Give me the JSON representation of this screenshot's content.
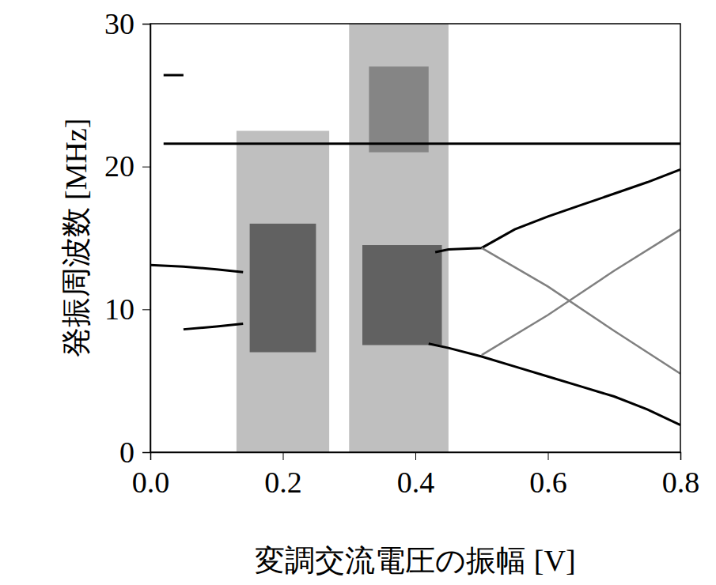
{
  "chart_data": {
    "type": "line",
    "x_label": "変調交流電圧の振幅 [V]",
    "y_label": "発振周波数 [MHz]",
    "xlim": [
      0,
      0.8
    ],
    "ylim": [
      0,
      30
    ],
    "xticks": [
      {
        "value": 0,
        "label": "0.0"
      },
      0.2,
      0.4,
      0.6,
      0.8
    ],
    "yticks": [
      0,
      10,
      20,
      30
    ],
    "grid": false,
    "regions": [
      {
        "x": [
          0.13,
          0.27
        ],
        "y": [
          0,
          22.5
        ],
        "color": "#b4b4b4"
      },
      {
        "x": [
          0.3,
          0.45
        ],
        "y": [
          0,
          30
        ],
        "color": "#b4b4b4"
      },
      {
        "x": [
          0.33,
          0.42
        ],
        "y": [
          21,
          27
        ],
        "color": "#7a7a7a"
      },
      {
        "x": [
          0.15,
          0.25
        ],
        "y": [
          7,
          16
        ],
        "color": "#505050"
      },
      {
        "x": [
          0.32,
          0.44
        ],
        "y": [
          7.5,
          14.5
        ],
        "color": "#505050"
      }
    ],
    "series": [
      {
        "x": [
          0.02,
          0.8
        ],
        "values": [
          21.6,
          21.6
        ],
        "color": "#000000",
        "line_style": "solid"
      },
      {
        "x": [
          0.0,
          0.05,
          0.1,
          0.14,
          null,
          0.43,
          0.45,
          0.5,
          0.55,
          0.6,
          0.65,
          0.7,
          0.75,
          0.8
        ],
        "values": [
          13.1,
          13.0,
          12.8,
          12.6,
          null,
          14.0,
          14.2,
          14.3,
          15.6,
          16.5,
          17.3,
          18.1,
          18.9,
          19.8
        ],
        "color": "#000000",
        "line_style": "solid"
      },
      {
        "x": [
          0.05,
          0.1,
          0.14,
          null,
          0.42,
          0.45,
          0.5,
          0.55,
          0.6,
          0.65,
          0.7,
          0.75,
          0.8
        ],
        "values": [
          8.6,
          8.8,
          9.0,
          null,
          7.6,
          7.3,
          6.7,
          6.0,
          5.3,
          4.6,
          3.9,
          3.0,
          1.9
        ],
        "color": "#000000",
        "line_style": "solid"
      },
      {
        "x": [
          0.5,
          0.6,
          0.7,
          0.8
        ],
        "values": [
          14.3,
          11.6,
          8.5,
          5.5
        ],
        "color": "#808080",
        "line_style": "solid"
      },
      {
        "x": [
          0.5,
          0.6,
          0.7,
          0.8
        ],
        "values": [
          6.8,
          9.6,
          12.7,
          15.6
        ],
        "color": "#808080",
        "line_style": "solid"
      },
      {
        "x": [
          0.02,
          0.05
        ],
        "values": [
          26.4,
          26.4
        ],
        "color": "#000000",
        "line_style": "solid"
      }
    ]
  }
}
